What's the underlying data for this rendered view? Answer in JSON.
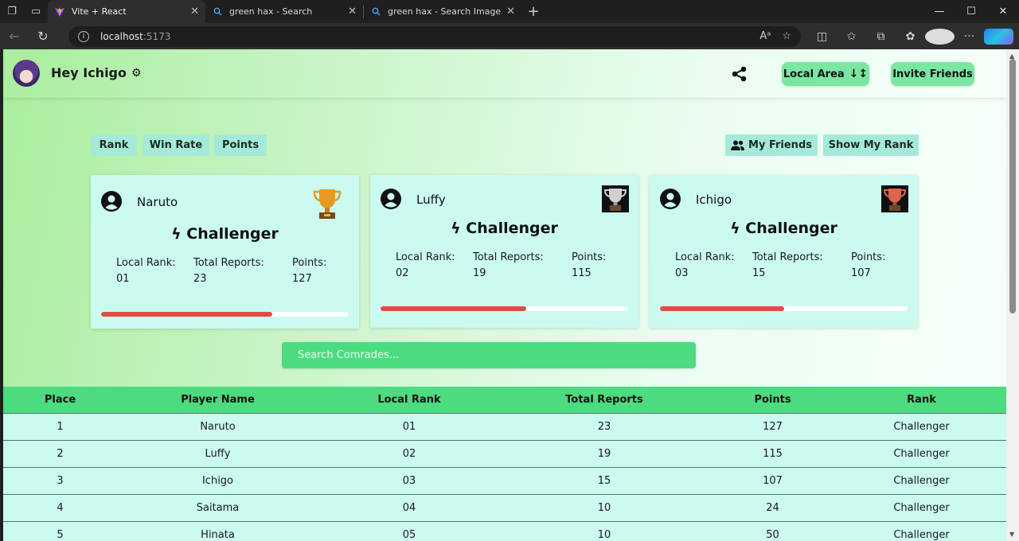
{
  "browser": {
    "tabs": [
      {
        "title": "Vite + React",
        "active": true,
        "favicon": "vite-icon"
      },
      {
        "title": "green hax - Search",
        "active": false,
        "favicon": "search-icon"
      },
      {
        "title": "green hax - Search Images",
        "active": false,
        "favicon": "search-icon"
      }
    ],
    "url_host": "localhost",
    "url_port": ":5173"
  },
  "header": {
    "greeting": "Hey Ichigo",
    "local_area_label": "Local Area",
    "invite_label": "Invite Friends"
  },
  "filters": {
    "rank": "Rank",
    "win_rate": "Win Rate",
    "points": "Points",
    "my_friends": "My Friends",
    "show_my_rank": "Show My Rank"
  },
  "cards": [
    {
      "name": "Naruto",
      "tier": "ϟ Challenger",
      "local_rank_label": "Local Rank:",
      "local_rank": "01",
      "reports_label": "Total Reports:",
      "reports": "23",
      "points_label": "Points:",
      "points": "127",
      "progress": 0.69,
      "trophy_color": "#d98c1f"
    },
    {
      "name": "Luffy",
      "tier": "ϟ Challenger",
      "local_rank_label": "Local Rank:",
      "local_rank": "02",
      "reports_label": "Total Reports:",
      "reports": "19",
      "points_label": "Points:",
      "points": "115",
      "progress": 0.59,
      "trophy_color": "#c7c7c7"
    },
    {
      "name": "Ichigo",
      "tier": "ϟ Challenger",
      "local_rank_label": "Local Rank:",
      "local_rank": "03",
      "reports_label": "Total Reports:",
      "reports": "15",
      "points_label": "Points:",
      "points": "107",
      "progress": 0.5,
      "trophy_color": "#d66a4e"
    }
  ],
  "search": {
    "placeholder": "Search Comrades..."
  },
  "table": {
    "headers": [
      "Place",
      "Player Name",
      "Local Rank",
      "Total Reports",
      "Points",
      "Rank"
    ],
    "rows": [
      [
        "1",
        "Naruto",
        "01",
        "23",
        "127",
        "Challenger"
      ],
      [
        "2",
        "Luffy",
        "02",
        "19",
        "115",
        "Challenger"
      ],
      [
        "3",
        "Ichigo",
        "03",
        "15",
        "107",
        "Challenger"
      ],
      [
        "4",
        "Saitama",
        "04",
        "10",
        "24",
        "Challenger"
      ],
      [
        "5",
        "Hinata",
        "05",
        "10",
        "50",
        "Challenger"
      ]
    ]
  }
}
